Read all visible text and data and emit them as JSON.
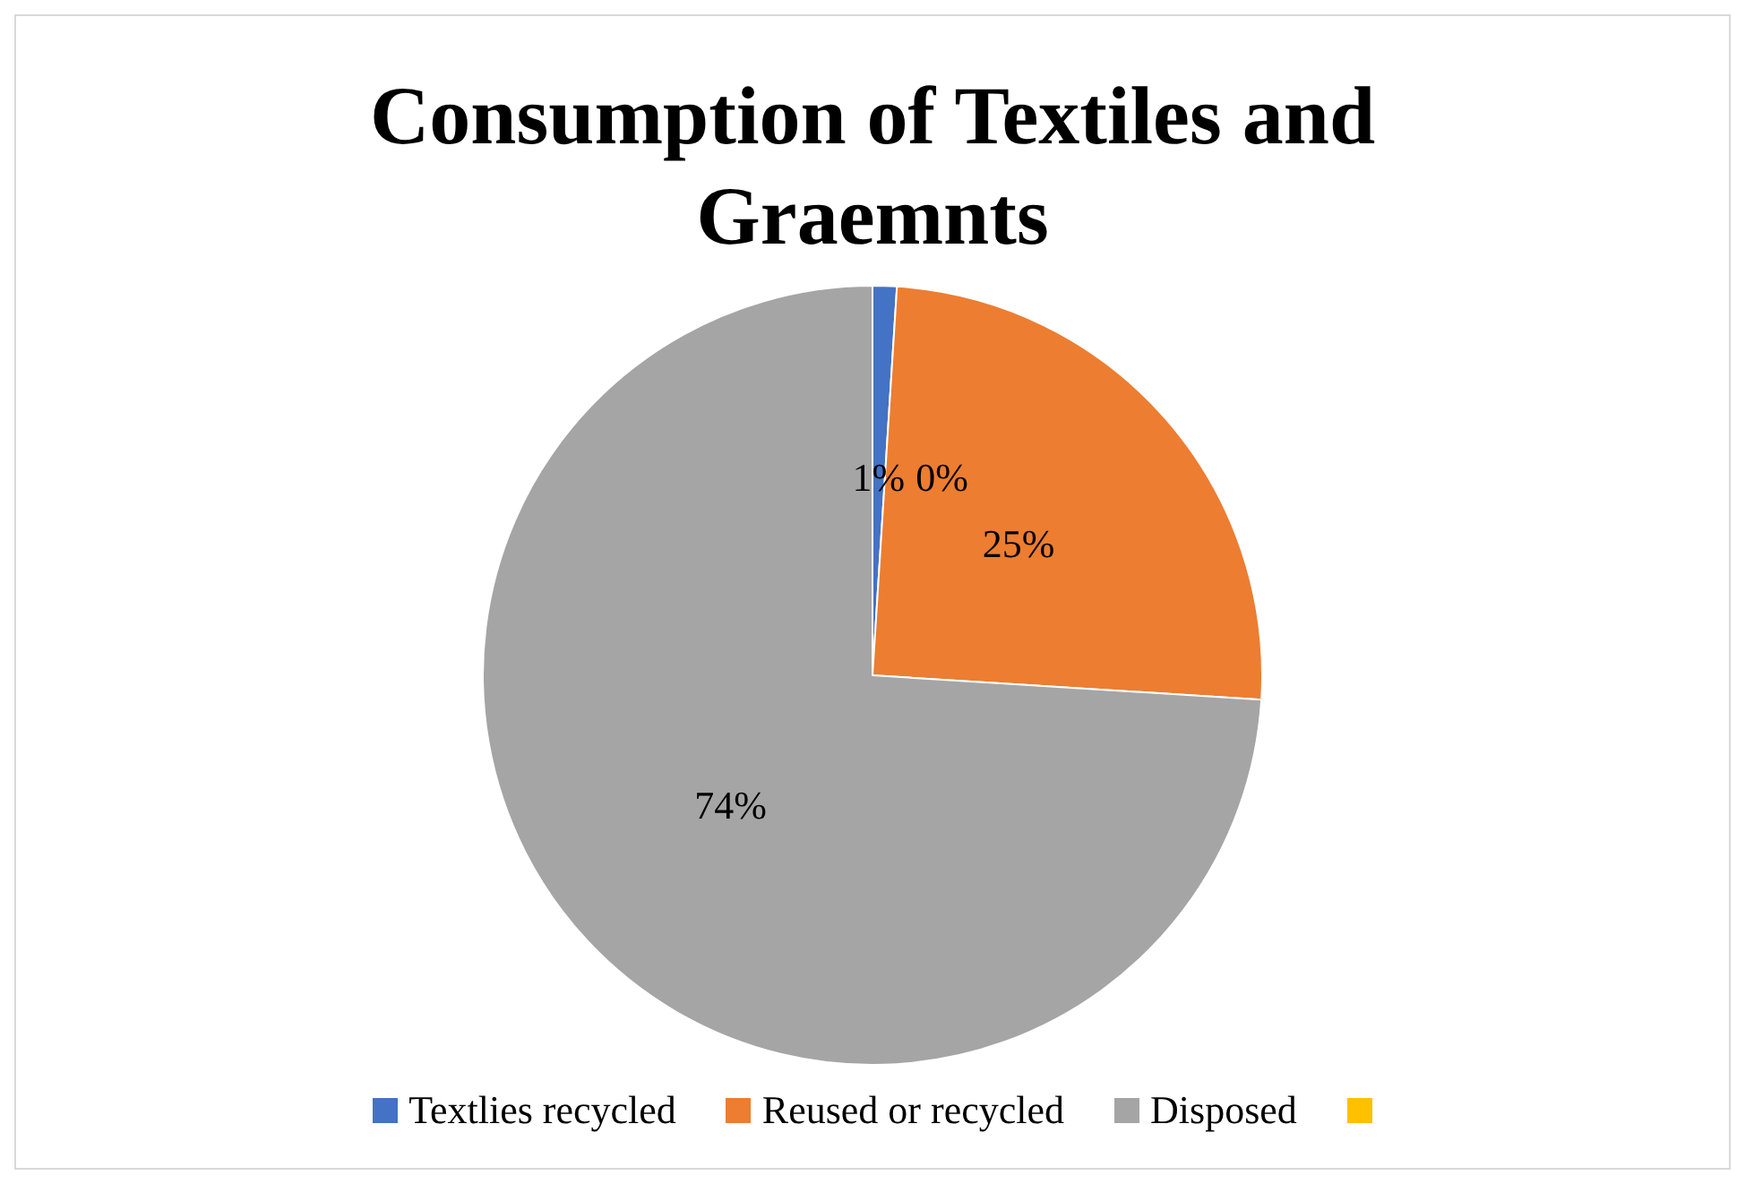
{
  "chart_data": {
    "type": "pie",
    "title": "Consumption of Textiles and Graemnts",
    "categories": [
      "Textlies recycled",
      "Reused or recycled",
      "Disposed",
      null
    ],
    "values": [
      1,
      25,
      74,
      0
    ],
    "colors": [
      "#4472c4",
      "#ed7d31",
      "#a5a5a5",
      "#ffc000"
    ],
    "value_labels": [
      "1%",
      "25%",
      "74%",
      "0%"
    ],
    "legend": "bottom"
  }
}
